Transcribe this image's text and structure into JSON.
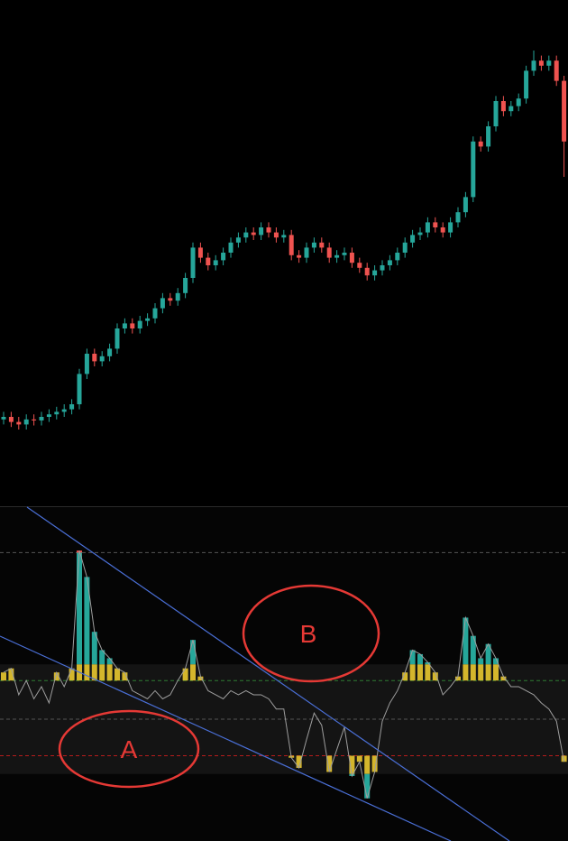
{
  "chart_data": [
    {
      "type": "candlestick",
      "up_color": "#26a69a",
      "down_color": "#ef5350",
      "ylim": [
        0,
        100
      ],
      "open": [
        17,
        17.5,
        16.5,
        16,
        17,
        16.8,
        17.5,
        18,
        18.5,
        19,
        20,
        26,
        30,
        28.5,
        29.5,
        31,
        35,
        36,
        35,
        36.5,
        37,
        39,
        41,
        40.5,
        42,
        45,
        51,
        49,
        47.5,
        48.5,
        50,
        52,
        53,
        54,
        53.5,
        55,
        54,
        53,
        53.5,
        49.5,
        49,
        51,
        52,
        51,
        49,
        49.5,
        50,
        48,
        47,
        45.5,
        46.5,
        47.5,
        48.5,
        50,
        52,
        53.5,
        54,
        56,
        55,
        54,
        56,
        58,
        61,
        72,
        71,
        75,
        80,
        78,
        79,
        80.5,
        86,
        88,
        87,
        88,
        84
      ],
      "high": [
        18.5,
        18.5,
        17.5,
        18,
        18,
        18.5,
        19,
        19.5,
        20,
        21,
        27,
        31,
        31,
        30.5,
        32,
        36,
        37,
        37,
        37.5,
        38,
        40,
        42,
        42,
        43,
        46,
        52,
        52,
        50,
        49.5,
        51,
        53,
        54,
        55,
        55,
        56,
        56,
        55,
        54.5,
        54.5,
        50.5,
        52,
        53,
        53,
        52,
        50.5,
        51,
        51,
        49,
        48,
        47.5,
        48.5,
        49.5,
        51,
        53,
        54.5,
        55,
        57,
        57,
        56,
        57,
        59,
        62,
        73,
        73,
        76,
        81,
        81,
        80,
        81.5,
        87,
        90,
        89,
        89,
        89,
        85
      ],
      "low": [
        16,
        15.5,
        15,
        15,
        15.8,
        15.8,
        16.5,
        17,
        17.5,
        18,
        19,
        25,
        27.5,
        27.5,
        28.5,
        30,
        34,
        34,
        34,
        35.5,
        36,
        38,
        39.5,
        39.5,
        41,
        44,
        48,
        46.5,
        46.5,
        47.5,
        49,
        51,
        52,
        52.5,
        52.5,
        53,
        52,
        52,
        48.5,
        48,
        48,
        50,
        50,
        48,
        48,
        48.5,
        47,
        46,
        44.5,
        44.5,
        45.5,
        46.5,
        47.5,
        49,
        51,
        52.5,
        53,
        54,
        53,
        53,
        55,
        57,
        60,
        70,
        70,
        74,
        77,
        77,
        78,
        79.5,
        85,
        86,
        86,
        83,
        65
      ],
      "close": [
        17.5,
        16.5,
        16,
        17,
        16.8,
        17.5,
        18,
        18.5,
        19,
        20,
        26,
        30,
        28.5,
        29.5,
        31,
        35,
        36,
        35,
        36.5,
        37,
        39,
        41,
        40.5,
        42,
        45,
        51,
        49,
        47.5,
        48.5,
        50,
        52,
        53,
        54,
        53.5,
        55,
        54,
        53,
        53.5,
        49.5,
        49,
        51,
        52,
        51,
        49,
        49.5,
        50,
        48,
        47,
        45.5,
        46.5,
        47.5,
        48.5,
        50,
        52,
        53.5,
        54,
        56,
        55,
        54,
        56,
        58,
        61,
        72,
        71,
        75,
        80,
        78,
        79,
        80.5,
        86,
        88,
        87,
        88,
        84,
        72
      ]
    },
    {
      "type": "oscillator",
      "color": "#9e9e9e",
      "ylim": [
        -60,
        104.4
      ],
      "levels": [
        {
          "value": 82,
          "color": "#555555"
        },
        {
          "value": 19,
          "color": "#2e7d32"
        },
        {
          "value": 0,
          "color": "#555555"
        },
        {
          "value": -18,
          "color": "#b71c1c"
        }
      ],
      "band": [
        27,
        -27
      ],
      "bar_colors": {
        "inner": "#d4b62c",
        "outer": "#26a69a",
        "extreme": "#ef5350"
      },
      "values": [
        23,
        25,
        12,
        19,
        10,
        16,
        8,
        23,
        16,
        25,
        83,
        70,
        43,
        34,
        30,
        25,
        23,
        14,
        12,
        10,
        14,
        10,
        12,
        19,
        25,
        39,
        21,
        14,
        12,
        10,
        14,
        12,
        14,
        12,
        12,
        10,
        5,
        5,
        -19,
        -24,
        -10,
        3,
        -3,
        -26,
        -15,
        -4,
        -28,
        -21,
        -39,
        -26,
        -1,
        8,
        14,
        23,
        34,
        32,
        28,
        23,
        12,
        16,
        21,
        50,
        41,
        30,
        37,
        30,
        21,
        16,
        16,
        14,
        12,
        8,
        5,
        -1,
        -21
      ]
    }
  ],
  "annotations": [
    {
      "label": "A"
    },
    {
      "label": "B"
    }
  ]
}
